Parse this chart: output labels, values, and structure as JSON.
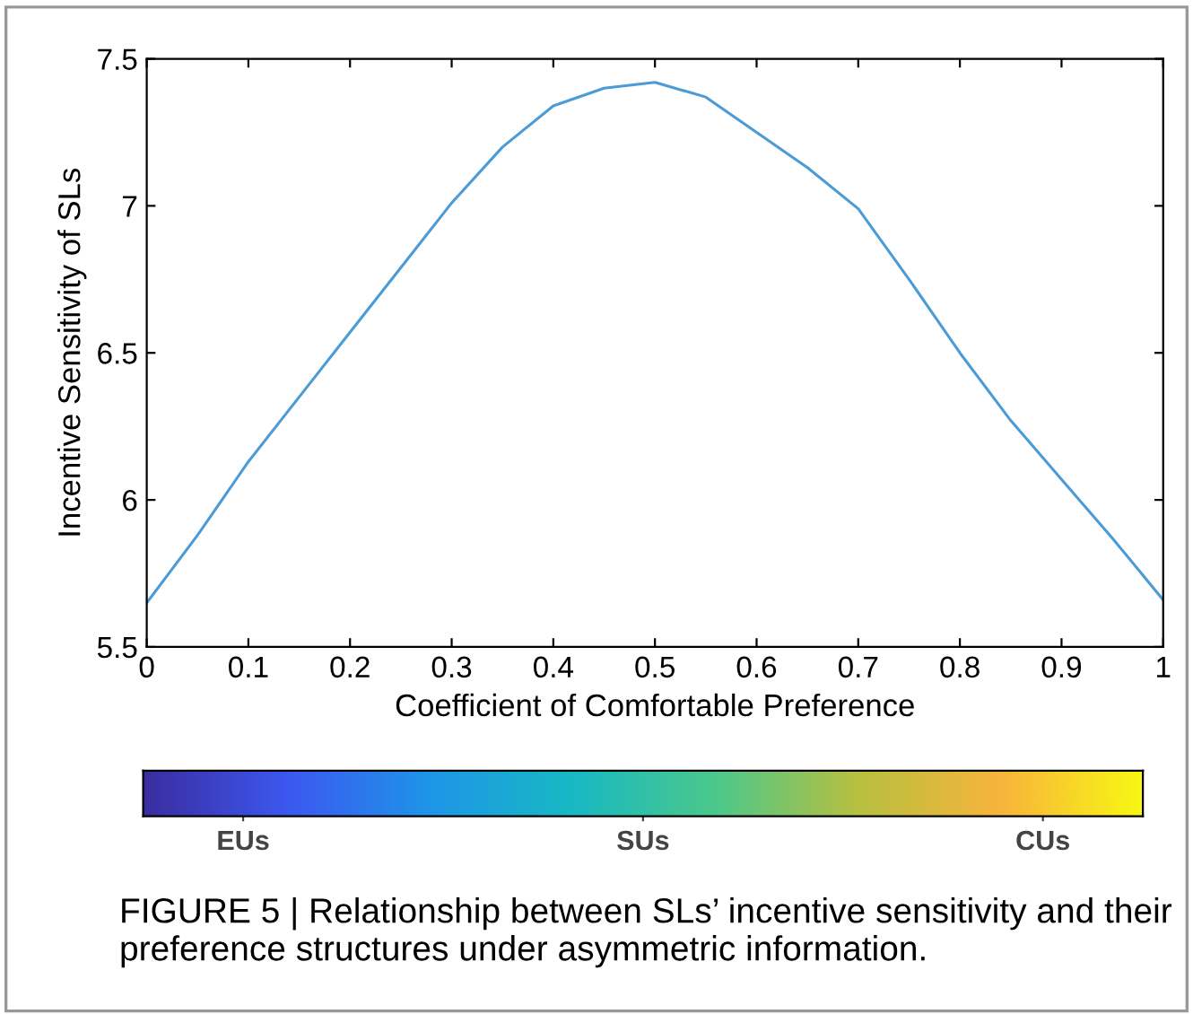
{
  "chart_data": [
    {
      "type": "line",
      "xlabel": "Coefficient of Comfortable Preference",
      "ylabel": "Incentive Sensitivity of SLs",
      "x": [
        0,
        0.05,
        0.1,
        0.15,
        0.2,
        0.25,
        0.3,
        0.35,
        0.4,
        0.45,
        0.5,
        0.55,
        0.6,
        0.65,
        0.7,
        0.75,
        0.8,
        0.85,
        0.9,
        0.95,
        1
      ],
      "series": [
        {
          "color": "#4a9bd6",
          "values": [
            5.65,
            5.88,
            6.13,
            6.35,
            6.57,
            6.79,
            7.01,
            7.2,
            7.34,
            7.4,
            7.42,
            7.37,
            7.25,
            7.13,
            6.99,
            6.75,
            6.5,
            6.27,
            6.07,
            5.87,
            5.66
          ]
        }
      ],
      "xlim": [
        0,
        1
      ],
      "xticks": [
        0,
        0.1,
        0.2,
        0.3,
        0.4,
        0.5,
        0.6,
        0.7,
        0.8,
        0.9,
        1
      ],
      "ylim": [
        5.5,
        7.5
      ],
      "yticks": [
        5.5,
        6,
        6.5,
        7,
        7.5
      ],
      "grid": false,
      "legend": false
    },
    {
      "type": "other",
      "categories": [
        "EUs",
        "SUs",
        "CUs"
      ],
      "annotations": [
        "FIGURE 5 | Relationship between SLs’ incentive sensitivity and their preference structures under asymmetric information."
      ]
    }
  ]
}
